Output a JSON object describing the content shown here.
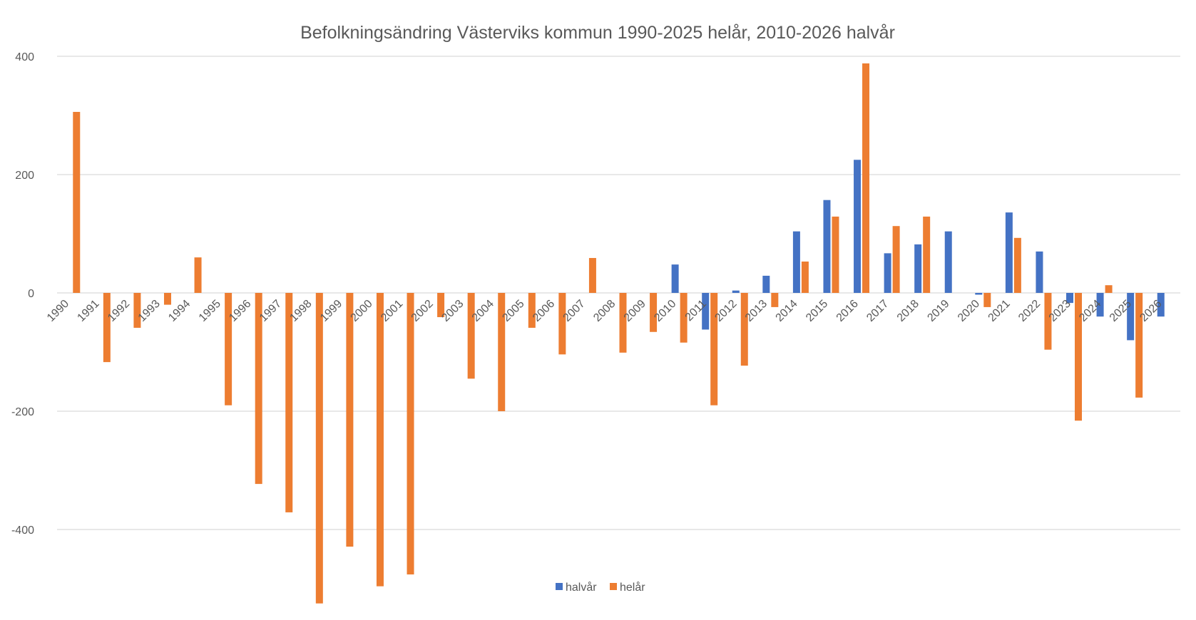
{
  "chart_data": {
    "type": "bar",
    "title": "Befolkningsändring Västerviks kommun 1990-2025 helår, 2010-2026 halvår",
    "xlabel": "",
    "ylabel": "",
    "ylim": [
      -520,
      400
    ],
    "yticks": [
      400,
      200,
      0,
      -200,
      -400
    ],
    "grid": true,
    "legend_position": "bottom",
    "categories": [
      "1990",
      "1991",
      "1992",
      "1993",
      "1994",
      "1995",
      "1996",
      "1997",
      "1998",
      "1999",
      "2000",
      "2001",
      "2002",
      "2003",
      "2004",
      "2005",
      "2006",
      "2007",
      "2008",
      "2009",
      "2010",
      "2011",
      "2012",
      "2013",
      "2014",
      "2015",
      "2016",
      "2017",
      "2018",
      "2019",
      "2020",
      "2021",
      "2022",
      "2023",
      "2024",
      "2025",
      "2026"
    ],
    "series": [
      {
        "name": "halvår",
        "color": "#4472c4",
        "values": [
          null,
          null,
          null,
          null,
          null,
          null,
          null,
          null,
          null,
          null,
          null,
          null,
          null,
          null,
          null,
          null,
          null,
          null,
          null,
          null,
          48,
          -62,
          4,
          29,
          104,
          157,
          225,
          67,
          82,
          104,
          -3,
          136,
          70,
          -17,
          -40,
          -80,
          -40
        ]
      },
      {
        "name": "helår",
        "color": "#ed7d31",
        "values": [
          306,
          -117,
          -59,
          -20,
          60,
          -190,
          -323,
          -371,
          -525,
          -429,
          -496,
          -476,
          -41,
          -145,
          -200,
          -59,
          -104,
          59,
          -101,
          -66,
          -84,
          -190,
          -123,
          -24,
          53,
          129,
          388,
          113,
          129,
          null,
          -24,
          93,
          -96,
          -216,
          13,
          -177,
          null
        ]
      }
    ]
  }
}
